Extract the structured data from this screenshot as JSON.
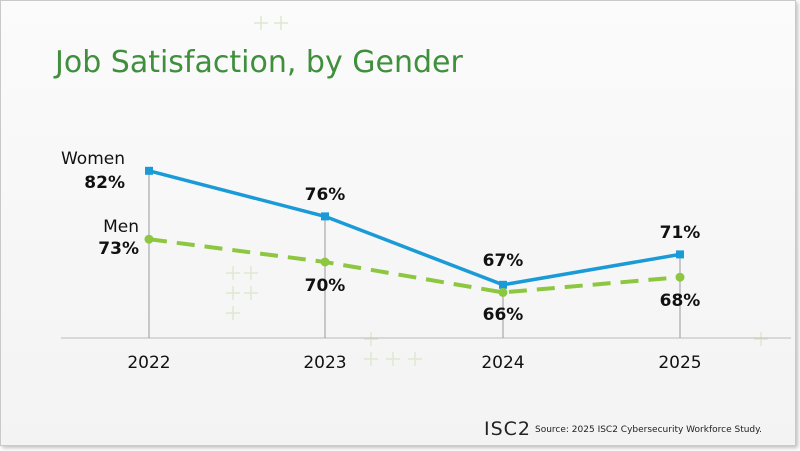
{
  "title": "Job Satisfaction, by Gender",
  "footer": {
    "logo": "ISC2",
    "source": "Source: 2025 ISC2 Cybersecurity Workforce Study."
  },
  "colors": {
    "title": "#3f8f3d",
    "women": "#1a9bd7",
    "men": "#8dc63f"
  },
  "chart_data": {
    "type": "line",
    "title": "Job Satisfaction, by Gender",
    "categories": [
      "2022",
      "2023",
      "2024",
      "2025"
    ],
    "series": [
      {
        "name": "Women",
        "values": [
          82,
          76,
          67,
          71
        ],
        "labels": [
          "82%",
          "76%",
          "67%",
          "71%"
        ],
        "style": "solid",
        "marker": "square"
      },
      {
        "name": "Men",
        "values": [
          73,
          70,
          66,
          68
        ],
        "labels": [
          "73%",
          "70%",
          "66%",
          "68%"
        ],
        "style": "dashed",
        "marker": "circle"
      }
    ],
    "ylim": [
      60,
      85
    ],
    "grid": false,
    "legend": "inline-left"
  }
}
